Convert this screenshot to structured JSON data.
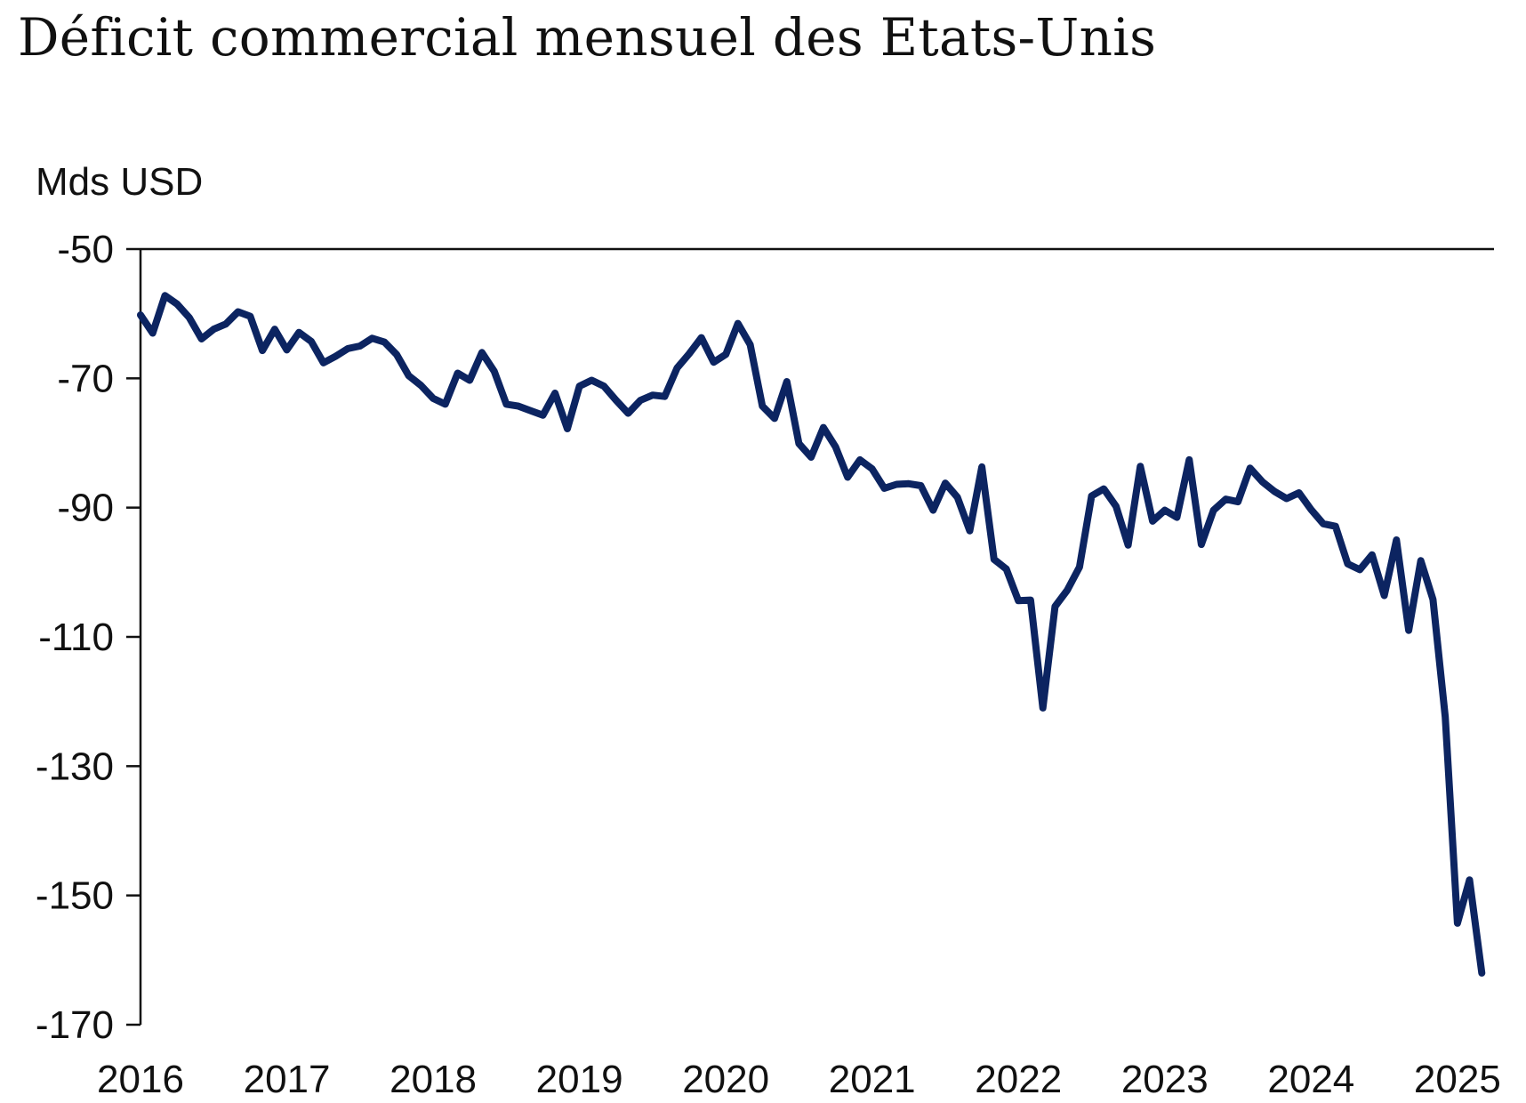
{
  "chart_data": {
    "type": "line",
    "title": "Déficit commercial mensuel des Etats-Unis",
    "ylabel": "Mds USD",
    "xlabel": "",
    "ylim": [
      -170,
      -50
    ],
    "yticks": [
      "-50",
      "-70",
      "-90",
      "-110",
      "-130",
      "-150",
      "-170"
    ],
    "xticks": [
      "2016",
      "2017",
      "2018",
      "2019",
      "2020",
      "2021",
      "2022",
      "2023",
      "2024",
      "2025"
    ],
    "xlim": [
      2016,
      2025.25
    ],
    "grid": false,
    "line_color": "#0c2461",
    "series": [
      {
        "x": [
          2016.0,
          2016.083,
          2016.167,
          2016.25,
          2016.333,
          2016.417,
          2016.5,
          2016.583,
          2016.667,
          2016.75,
          2016.833,
          2016.917,
          2017.0,
          2017.083,
          2017.167,
          2017.25,
          2017.333,
          2017.417,
          2017.5,
          2017.583,
          2017.667,
          2017.75,
          2017.833,
          2017.917,
          2018.0,
          2018.083,
          2018.167,
          2018.25,
          2018.333,
          2018.417,
          2018.5,
          2018.583,
          2018.667,
          2018.75,
          2018.833,
          2018.917,
          2019.0,
          2019.083,
          2019.167,
          2019.25,
          2019.333,
          2019.417,
          2019.5,
          2019.583,
          2019.667,
          2019.75,
          2019.833,
          2019.917,
          2020.0,
          2020.083,
          2020.167,
          2020.25,
          2020.333,
          2020.417,
          2020.5,
          2020.583,
          2020.667,
          2020.75,
          2020.833,
          2020.917,
          2021.0,
          2021.083,
          2021.167,
          2021.25,
          2021.333,
          2021.417,
          2021.5,
          2021.583,
          2021.667,
          2021.75,
          2021.833,
          2021.917,
          2022.0,
          2022.083,
          2022.167,
          2022.25,
          2022.333,
          2022.417,
          2022.5,
          2022.583,
          2022.667,
          2022.75,
          2022.833,
          2022.917,
          2023.0,
          2023.083,
          2023.167,
          2023.25,
          2023.333,
          2023.417,
          2023.5,
          2023.583,
          2023.667,
          2023.75,
          2023.833,
          2023.917,
          2024.0,
          2024.083,
          2024.167,
          2024.25,
          2024.333,
          2024.417,
          2024.5,
          2024.583,
          2024.667,
          2024.75,
          2024.833,
          2024.917,
          2025.0,
          2025.083,
          2025.167
        ],
        "values": [
          -60.2,
          -63.0,
          -57.2,
          -58.5,
          -60.6,
          -63.9,
          -62.4,
          -61.6,
          -59.7,
          -60.4,
          -65.7,
          -62.4,
          -65.6,
          -62.9,
          -64.3,
          -67.6,
          -66.6,
          -65.4,
          -65.0,
          -63.8,
          -64.4,
          -66.3,
          -69.6,
          -71.1,
          -73.1,
          -74.0,
          -69.2,
          -70.3,
          -66.0,
          -68.9,
          -74.0,
          -74.3,
          -75.0,
          -75.7,
          -72.3,
          -77.8,
          -71.2,
          -70.3,
          -71.2,
          -73.4,
          -75.4,
          -73.4,
          -72.6,
          -72.8,
          -68.4,
          -66.2,
          -63.7,
          -67.5,
          -66.3,
          -61.5,
          -64.8,
          -74.3,
          -76.2,
          -70.5,
          -80.1,
          -82.2,
          -77.6,
          -80.6,
          -85.3,
          -82.6,
          -84.0,
          -87.0,
          -86.4,
          -86.3,
          -86.6,
          -90.4,
          -86.2,
          -88.4,
          -93.6,
          -83.7,
          -98.0,
          -99.5,
          -104.4,
          -104.3,
          -121.0,
          -105.3,
          -102.8,
          -99.2,
          -88.2,
          -87.1,
          -89.8,
          -95.8,
          -83.6,
          -92.1,
          -90.4,
          -91.5,
          -82.6,
          -95.7,
          -90.4,
          -88.7,
          -89.1,
          -83.9,
          -86.0,
          -87.5,
          -88.6,
          -87.7,
          -90.3,
          -92.5,
          -92.9,
          -98.7,
          -99.6,
          -97.3,
          -103.6,
          -95.0,
          -109.0,
          -98.2,
          -104.2,
          -122.4,
          -154.3,
          -147.6,
          -162.0
        ]
      }
    ]
  }
}
